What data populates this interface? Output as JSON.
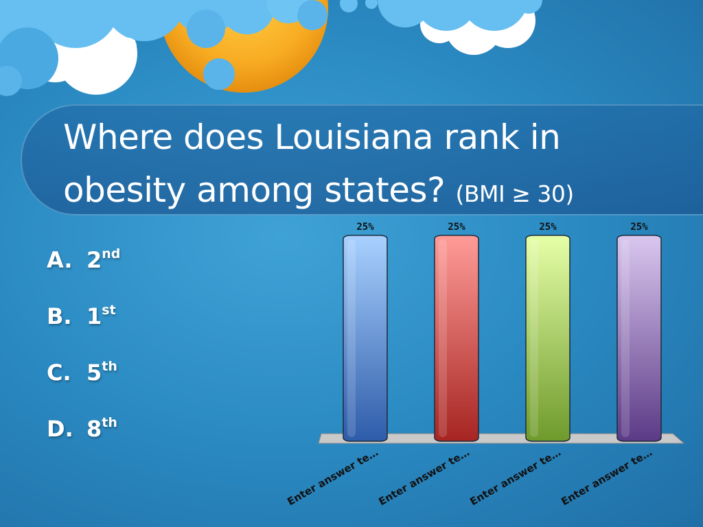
{
  "slide": {
    "title_line1": "Where does Louisiana rank in",
    "title_line2": "obesity among states?",
    "title_note": "(BMI ≥ 30)"
  },
  "answers": [
    {
      "letter": "A.",
      "value": "2",
      "suffix": "nd"
    },
    {
      "letter": "B.",
      "value": "1",
      "suffix": "st"
    },
    {
      "letter": "C.",
      "value": "5",
      "suffix": "th"
    },
    {
      "letter": "D.",
      "value": "8",
      "suffix": "th"
    }
  ],
  "chart_data": {
    "type": "bar",
    "categories": [
      "Enter answer te…",
      "Enter answer te…",
      "Enter answer te…",
      "Enter answer te…"
    ],
    "values": [
      25,
      25,
      25,
      25
    ],
    "value_labels": [
      "25%",
      "25%",
      "25%",
      "25%"
    ],
    "ylim": [
      0,
      25
    ],
    "grid": false,
    "bar_colors": [
      {
        "top": "#a9d1ff",
        "bottom": "#2e5ca9"
      },
      {
        "top": "#ff9c98",
        "bottom": "#a62522"
      },
      {
        "top": "#e6ffa8",
        "bottom": "#6e9a2b"
      },
      {
        "top": "#dac7ef",
        "bottom": "#5b3a86"
      }
    ]
  },
  "colors": {
    "background": "#2c8cc4",
    "text": "#ffffff",
    "sun": "#f6a623",
    "cloud_blue": "#66bff0",
    "cloud_white": "#ffffff"
  }
}
